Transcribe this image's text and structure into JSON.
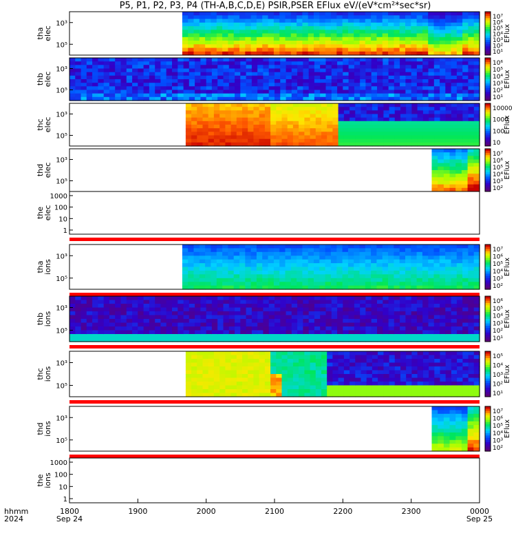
{
  "title": "P5, P1, P2, P3, P4 (TH-A,B,C,D,E) PSIR,PSER EFlux eV/(eV*cm²*sec*sr)",
  "chart_data": {
    "type": "heatmap",
    "title": "P5, P1, P2, P3, P4 (TH-A,B,C,D,E) PSIR,PSER EFlux eV/(eV*cm²*sec*sr)",
    "x_axis": {
      "label_lines": [
        "hhmm",
        "2024"
      ],
      "range": [
        "2024-09-24 18:00",
        "2024-09-25 00:00"
      ],
      "ticks": [
        {
          "t": 0,
          "label": "1800",
          "sub": "Sep 24"
        },
        {
          "t": 1,
          "label": "1900",
          "sub": ""
        },
        {
          "t": 2,
          "label": "2000",
          "sub": ""
        },
        {
          "t": 3,
          "label": "2100",
          "sub": ""
        },
        {
          "t": 4,
          "label": "2200",
          "sub": ""
        },
        {
          "t": 5,
          "label": "2300",
          "sub": ""
        },
        {
          "t": 6,
          "label": "0000",
          "sub": "Sep 25"
        }
      ]
    },
    "colorbar_label": "EFlux",
    "panels": [
      {
        "ylabel": [
          "tha",
          "elec"
        ],
        "yticks": [
          "10³",
          "10⁵"
        ],
        "colorbar": [
          "10⁷",
          "10⁶",
          "10⁵",
          "10⁴",
          "10³",
          "10²",
          "10¹"
        ],
        "data_start_hour": 1.65,
        "pattern": "ramp_high_low"
      },
      {
        "ylabel": [
          "thb",
          "elec"
        ],
        "yticks": [
          "10³",
          "10⁵"
        ],
        "colorbar": [
          "10⁶",
          "10⁵",
          "10⁴",
          "10³",
          "10²",
          "10¹"
        ],
        "data_start_hour": 0.0,
        "pattern": "noisy_blue"
      },
      {
        "ylabel": [
          "thc",
          "elec"
        ],
        "yticks": [
          "10³",
          "10⁵"
        ],
        "colorbar": [
          "10000",
          "1000",
          "100",
          "10"
        ],
        "data_start_hour": 1.7,
        "pattern": "hot_then_noisy"
      },
      {
        "ylabel": [
          "thd",
          "elec"
        ],
        "yticks": [
          "10³",
          "10⁵"
        ],
        "colorbar": [
          "10⁷",
          "10⁶",
          "10⁵",
          "10⁴",
          "10³",
          "10²"
        ],
        "data_start_hour": 5.3,
        "pattern": "late_blob"
      },
      {
        "ylabel": [
          "the",
          "elec"
        ],
        "yticks": [
          "1000",
          "100",
          "10",
          "1"
        ],
        "colorbar": [],
        "data_start_hour": null,
        "pattern": "empty"
      },
      {
        "ylabel": [
          "tha",
          "ions"
        ],
        "yticks": [
          "10³",
          "10⁵"
        ],
        "colorbar": [
          "10⁷",
          "10⁶",
          "10⁵",
          "10⁴",
          "10³",
          "10²"
        ],
        "data_start_hour": 1.65,
        "pattern": "ion_blue"
      },
      {
        "ylabel": [
          "thb",
          "ions"
        ],
        "yticks": [
          "10³",
          "10⁵"
        ],
        "colorbar": [
          "10⁶",
          "10⁵",
          "10⁴",
          "10³",
          "10²",
          "10¹"
        ],
        "data_start_hour": 0.0,
        "pattern": "noisy_purple"
      },
      {
        "ylabel": [
          "thc",
          "ions"
        ],
        "yticks": [
          "10³",
          "10⁵"
        ],
        "colorbar": [
          "10⁵",
          "10⁴",
          "10³",
          "10²",
          "10¹"
        ],
        "data_start_hour": 1.7,
        "pattern": "ion_mix"
      },
      {
        "ylabel": [
          "thd",
          "ions"
        ],
        "yticks": [
          "10³",
          "10⁵"
        ],
        "colorbar": [
          "10⁷",
          "10⁶",
          "10⁵",
          "10⁴",
          "10³",
          "10²"
        ],
        "data_start_hour": 5.3,
        "pattern": "late_blob_ion"
      },
      {
        "ylabel": [
          "the",
          "ions"
        ],
        "yticks": [
          "1000",
          "100",
          "10",
          "1"
        ],
        "colorbar": [],
        "data_start_hour": null,
        "pattern": "empty"
      }
    ]
  }
}
